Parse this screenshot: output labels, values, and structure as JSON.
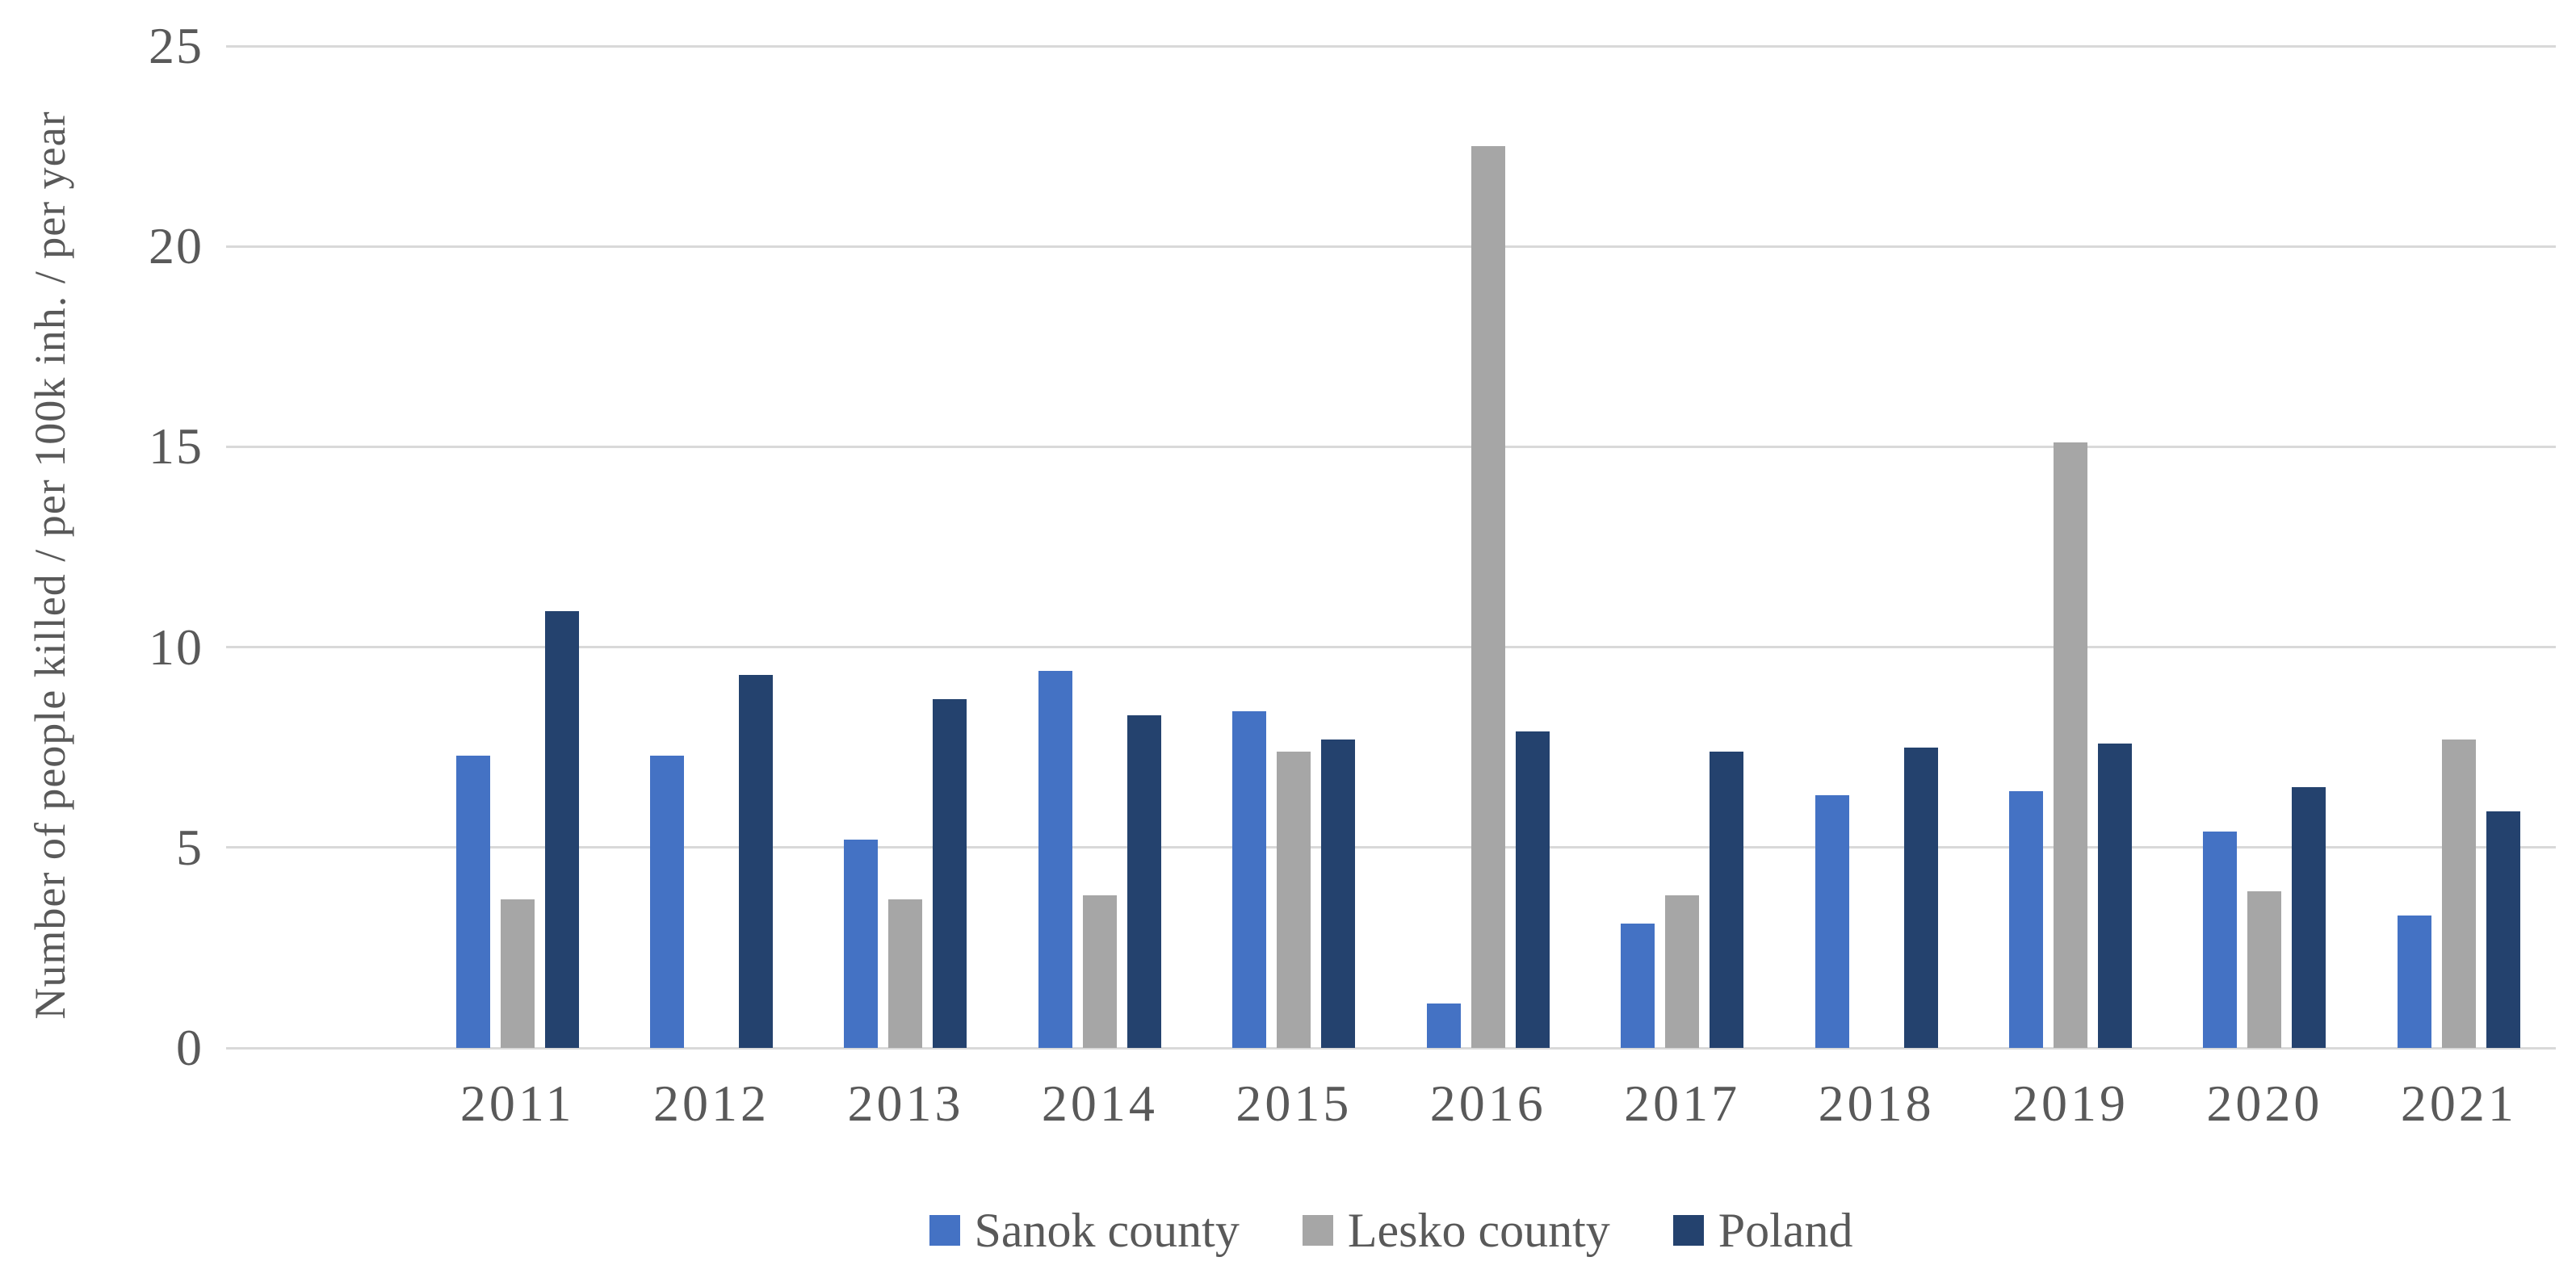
{
  "page": {
    "background": "#FFFFFF"
  },
  "colors": {
    "gridline": "#D9D9D9",
    "axis_text": "#595959"
  },
  "chart_data": {
    "type": "bar",
    "title": "",
    "xlabel": "",
    "ylabel": "Number of people killed / per 100k inh. / per year",
    "ylim": [
      0,
      25
    ],
    "y_ticks": [
      0,
      5,
      10,
      15,
      20,
      25
    ],
    "grid": "horizontal-only",
    "legend_position": "bottom-center",
    "leading_blank_category": true,
    "categories": [
      "2011",
      "2012",
      "2013",
      "2014",
      "2015",
      "2016",
      "2017",
      "2018",
      "2019",
      "2020",
      "2021"
    ],
    "series": [
      {
        "name": "Sanok county",
        "color": "#4472C4",
        "values": [
          7.3,
          7.3,
          5.2,
          9.4,
          8.4,
          1.1,
          3.1,
          6.3,
          6.4,
          5.4,
          3.3
        ]
      },
      {
        "name": "Lesko county",
        "color": "#A6A6A6",
        "values": [
          3.7,
          0,
          3.7,
          3.8,
          7.4,
          22.5,
          3.8,
          0,
          15.1,
          3.9,
          7.7
        ]
      },
      {
        "name": "Poland",
        "color": "#24426E",
        "values": [
          10.9,
          9.3,
          8.7,
          8.3,
          7.7,
          7.9,
          7.4,
          7.5,
          7.6,
          6.5,
          5.9
        ]
      }
    ]
  }
}
